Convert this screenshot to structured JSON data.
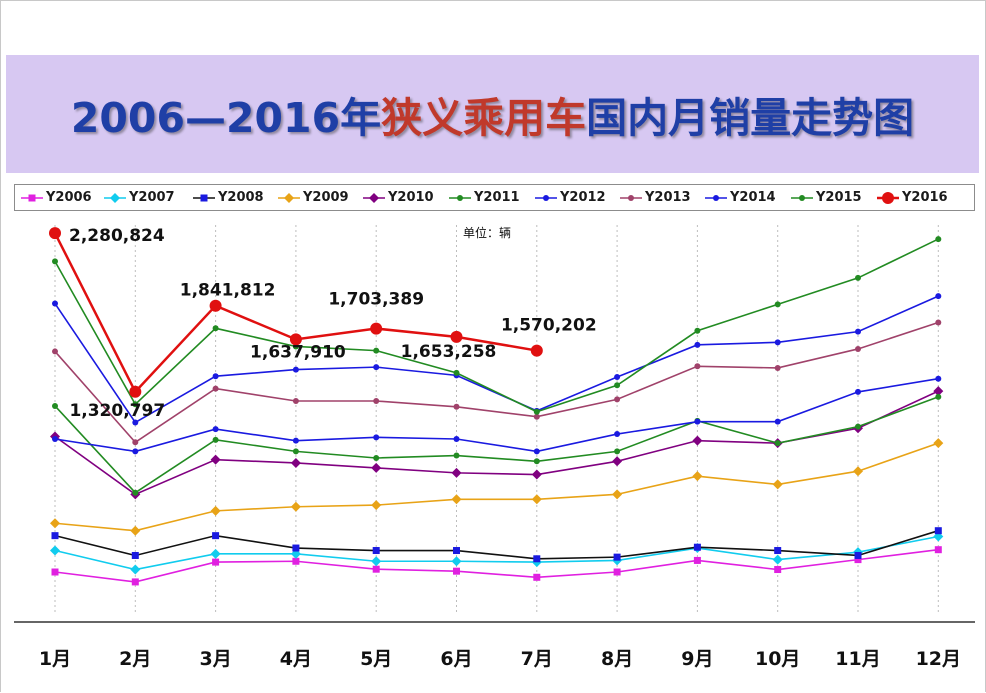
{
  "title": {
    "part1": "2006—2016年",
    "part2": "狭义乘用车",
    "part3": "国内月销量走势图"
  },
  "unit": "单位：辆",
  "chart_data": {
    "type": "line",
    "title": "2006—2016年狭义乘用车国内月销量走势图",
    "ylabel": "单位：辆",
    "categories": [
      "1月",
      "2月",
      "3月",
      "4月",
      "5月",
      "6月",
      "7月",
      "8月",
      "9月",
      "10月",
      "11月",
      "12月"
    ],
    "ylim": [
      0,
      2300000
    ],
    "grid": "vertical dotted",
    "legend_position": "top",
    "series": [
      {
        "name": "Y2006",
        "color": "#e020e0",
        "marker": "square",
        "values": [
          230000,
          170000,
          290000,
          295000,
          247000,
          235000,
          198000,
          230000,
          300000,
          245000,
          305000,
          365000
        ]
      },
      {
        "name": "Y2007",
        "color": "#11ccee",
        "marker": "diamond",
        "values": [
          360000,
          245000,
          340000,
          340000,
          295000,
          295000,
          290000,
          300000,
          375000,
          305000,
          350000,
          445000
        ]
      },
      {
        "name": "Y2008",
        "color": "#1a1ae0",
        "marker": "square",
        "values": [
          450000,
          330000,
          450000,
          375000,
          360000,
          360000,
          310000,
          320000,
          380000,
          360000,
          330000,
          480000
        ]
      },
      {
        "name": "Y2009",
        "color": "#e8a317",
        "marker": "diamond",
        "values": [
          525000,
          480000,
          600000,
          625000,
          635000,
          670000,
          670000,
          700000,
          810000,
          760000,
          840000,
          1010000
        ]
      },
      {
        "name": "Y2010",
        "color": "#800080",
        "marker": "diamond",
        "values": [
          1050000,
          700000,
          910000,
          890000,
          860000,
          830000,
          820000,
          900000,
          1025000,
          1010000,
          1100000,
          1325000
        ]
      },
      {
        "name": "Y2011",
        "color": "#228b22",
        "marker": "dot",
        "values": [
          1235000,
          710000,
          1030000,
          960000,
          920000,
          935000,
          900000,
          960000,
          1145000,
          1010000,
          1110000,
          1290000
        ]
      },
      {
        "name": "Y2012",
        "color": "#1a1ae0",
        "marker": "dot",
        "values": [
          1035000,
          960000,
          1095000,
          1025000,
          1045000,
          1035000,
          960000,
          1065000,
          1140000,
          1140000,
          1320000,
          1400000
        ]
      },
      {
        "name": "Y2013",
        "color": "#a0426a",
        "marker": "dot",
        "values": [
          1565000,
          1015000,
          1340000,
          1265000,
          1265000,
          1230000,
          1170000,
          1275000,
          1475000,
          1465000,
          1580000,
          1740000
        ]
      },
      {
        "name": "Y2014",
        "color": "#1a1ae0",
        "marker": "dot",
        "values": [
          1855000,
          1135000,
          1415000,
          1455000,
          1470000,
          1420000,
          1205000,
          1410000,
          1605000,
          1620000,
          1685000,
          1900000
        ]
      },
      {
        "name": "Y2015",
        "color": "#228b22",
        "marker": "dot",
        "values": [
          2110000,
          1245000,
          1705000,
          1595000,
          1570000,
          1435000,
          1200000,
          1360000,
          1690000,
          1850000,
          2010000,
          2245000
        ]
      },
      {
        "name": "Y2016",
        "color": "#e01010",
        "marker": "bigdot",
        "values": [
          2280824,
          1320797,
          1841812,
          1637910,
          1703389,
          1653258,
          1570202,
          null,
          null,
          null,
          null,
          null
        ]
      }
    ],
    "data_labels": [
      {
        "series": "Y2016",
        "category": "1月",
        "text": "2,280,824"
      },
      {
        "series": "Y2016",
        "category": "2月",
        "text": "1,320,797"
      },
      {
        "series": "Y2016",
        "category": "3月",
        "text": "1,841,812"
      },
      {
        "series": "Y2016",
        "category": "4月",
        "text": "1,637,910"
      },
      {
        "series": "Y2016",
        "category": "5月",
        "text": "1,703,389"
      },
      {
        "series": "Y2016",
        "category": "6月",
        "text": "1,653,258"
      },
      {
        "series": "Y2016",
        "category": "7月",
        "text": "1,570,202"
      }
    ]
  }
}
